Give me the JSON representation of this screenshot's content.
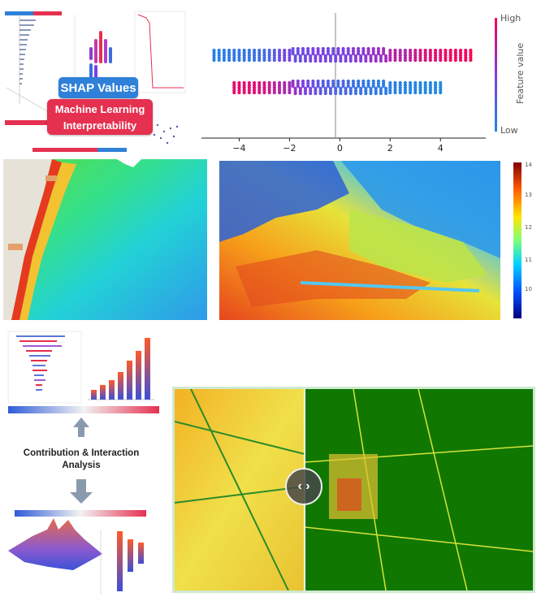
{
  "badges": {
    "shap": "SHAP Values",
    "ml_line1": "Machine Learning",
    "ml_line2": "Interpretability"
  },
  "caption": {
    "line1": "Contribution & Interaction",
    "line2": "Analysis"
  },
  "feature_colorbar": {
    "high": "High",
    "low": "Low",
    "label": "Feature value",
    "colors": [
      "#1e88e5",
      "#7b3fe4",
      "#ff0052"
    ]
  },
  "raster_colorbar": {
    "ticks": [
      "14",
      "13",
      "12",
      "11",
      "10"
    ],
    "colors": [
      "#00007f",
      "#0050ff",
      "#00d4ff",
      "#7dff7a",
      "#ffe600",
      "#ff5a00",
      "#800000"
    ]
  },
  "compare_handle": {
    "icon": "chevron-left-right-icon",
    "glyph": "‹ ›"
  },
  "chart_data": {
    "type": "scatter",
    "xlabel": "",
    "ylabel": "",
    "xlim": [
      -5.5,
      5.8
    ],
    "xticks": [
      -4,
      -2,
      0,
      2,
      4
    ],
    "tick_labels": [
      "−4",
      "−2",
      "0",
      "2",
      "4"
    ],
    "series": [
      {
        "row": 1,
        "x": [
          -5.0,
          -4.8,
          -4.6,
          -4.4,
          -4.2,
          -4.0,
          -3.8,
          -3.6,
          -3.4,
          -3.2,
          -3.0,
          -2.8,
          -2.6,
          -2.4,
          -2.2,
          -2.0,
          -1.8,
          -1.6,
          -1.4,
          -1.2,
          -1.0,
          -0.8,
          -0.6,
          -0.4,
          -0.2,
          0.0,
          0.2,
          0.4,
          0.6,
          0.8,
          1.0,
          1.2,
          1.4,
          1.6,
          1.8,
          2.0,
          2.2,
          2.4,
          2.6,
          2.8,
          3.0,
          3.2,
          3.4,
          3.6,
          3.8,
          4.0,
          4.2,
          4.4,
          4.6,
          4.8,
          5.0,
          5.2
        ],
        "feature": [
          0.05,
          0.05,
          0.08,
          0.08,
          0.1,
          0.1,
          0.12,
          0.12,
          0.15,
          0.18,
          0.2,
          0.25,
          0.3,
          0.4,
          0.45,
          0.45,
          0.4,
          0.4,
          0.45,
          0.45,
          0.5,
          0.5,
          0.5,
          0.45,
          0.45,
          0.5,
          0.5,
          0.5,
          0.55,
          0.55,
          0.55,
          0.6,
          0.6,
          0.6,
          0.65,
          0.7,
          0.75,
          0.7,
          0.7,
          0.75,
          0.8,
          0.85,
          0.85,
          0.9,
          0.9,
          0.9,
          0.95,
          0.95,
          0.95,
          0.95,
          0.95,
          1.0
        ]
      },
      {
        "row": 2,
        "x": [
          -4.2,
          -4.0,
          -3.8,
          -3.6,
          -3.4,
          -3.2,
          -3.0,
          -2.8,
          -2.6,
          -2.4,
          -2.2,
          -2.0,
          -1.8,
          -1.6,
          -1.4,
          -1.2,
          -1.0,
          -0.8,
          -0.6,
          -0.4,
          -0.2,
          0.0,
          0.2,
          0.4,
          0.6,
          0.8,
          1.0,
          1.2,
          1.4,
          1.6,
          1.8,
          2.0,
          2.2,
          2.4,
          2.6,
          2.8,
          3.0,
          3.2,
          3.4,
          3.6,
          3.8,
          4.0
        ],
        "feature": [
          0.9,
          0.92,
          0.9,
          0.88,
          0.9,
          0.85,
          0.85,
          0.8,
          0.75,
          0.7,
          0.7,
          0.65,
          0.6,
          0.55,
          0.5,
          0.45,
          0.4,
          0.35,
          0.3,
          0.3,
          0.25,
          0.2,
          0.25,
          0.2,
          0.15,
          0.15,
          0.12,
          0.1,
          0.1,
          0.08,
          0.08,
          0.05,
          0.05,
          0.05,
          0.03,
          0.03,
          0.02,
          0.02,
          0.02,
          0.02,
          0.01,
          0.01
        ]
      }
    ]
  }
}
